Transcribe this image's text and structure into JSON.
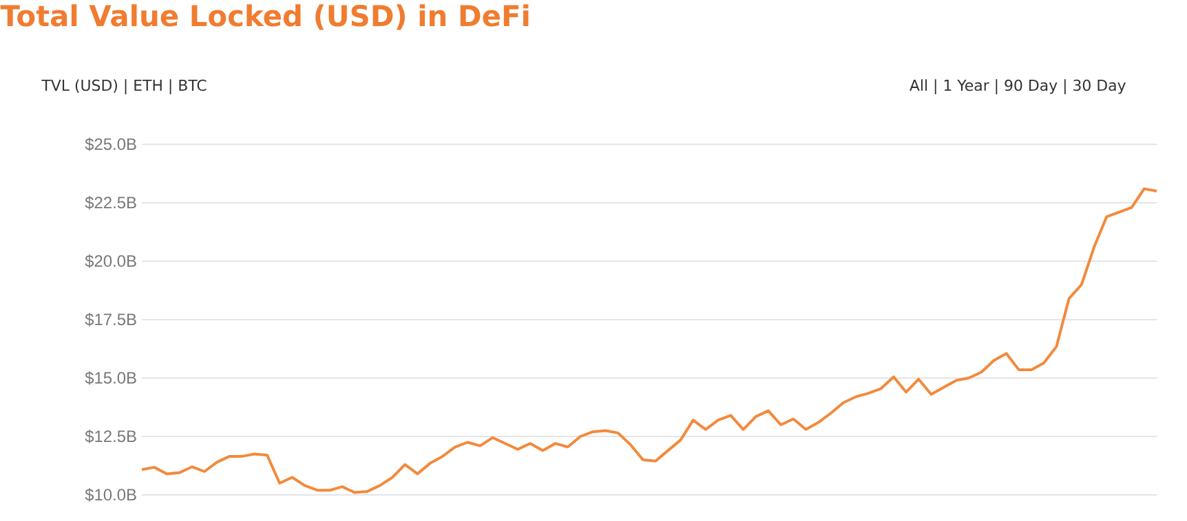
{
  "chart_data": {
    "type": "line",
    "title": "Total Value Locked (USD) in DeFi",
    "annotations": [
      "TVL (USD) | ETH | BTC",
      "All | 1 Year | 90 Day | 30 Day"
    ],
    "categories": [
      null,
      null,
      null,
      null,
      null,
      null,
      null,
      null,
      null,
      null,
      null,
      null,
      null,
      null,
      null,
      null,
      null,
      null,
      null,
      null,
      null,
      null,
      null,
      null,
      null,
      null,
      null,
      null,
      null,
      null,
      null,
      null,
      null,
      null,
      null,
      null,
      null,
      null,
      null,
      null,
      null,
      null,
      null,
      null,
      null,
      null,
      null,
      null,
      null,
      null,
      null,
      null,
      null,
      null,
      null,
      null,
      null,
      null,
      null,
      null,
      null,
      null,
      null,
      null,
      null,
      null,
      null,
      null,
      null,
      null,
      null,
      null,
      null,
      null,
      null,
      null,
      null,
      null,
      null,
      null,
      null,
      null
    ],
    "series": [
      {
        "color": "#f28a3c",
        "values": [
          11.08,
          11.18,
          10.9,
          10.95,
          11.2,
          11.0,
          11.4,
          11.65,
          11.65,
          11.75,
          11.7,
          10.5,
          10.75,
          10.4,
          10.2,
          10.2,
          10.35,
          10.1,
          10.15,
          10.4,
          10.75,
          11.3,
          10.9,
          11.35,
          11.65,
          12.05,
          12.25,
          12.1,
          12.45,
          12.2,
          11.95,
          12.2,
          11.9,
          12.2,
          12.05,
          12.5,
          12.7,
          12.75,
          12.65,
          12.15,
          11.5,
          11.45,
          11.9,
          12.35,
          13.2,
          12.8,
          13.2,
          13.4,
          12.8,
          13.35,
          13.6,
          13.0,
          13.25,
          12.8,
          13.1,
          13.5,
          13.95,
          14.2,
          14.35,
          14.55,
          15.05,
          14.4,
          14.95,
          14.3,
          14.6,
          14.9,
          15.0,
          15.25,
          15.75,
          16.05,
          15.35,
          15.35,
          15.65,
          16.35,
          18.4,
          19.0,
          20.6,
          21.9,
          22.1,
          22.3,
          23.1,
          23.0
        ]
      }
    ],
    "ylim": [
      10,
      25
    ],
    "yticks": [
      {
        "value": 10,
        "label": "$10.0B"
      },
      {
        "value": 12.5,
        "label": "$12.5B"
      },
      {
        "value": 15,
        "label": "$15.0B"
      },
      {
        "value": 17.5,
        "label": "$17.5B"
      },
      {
        "value": 20,
        "label": "$20.0B"
      },
      {
        "value": 22.5,
        "label": "$22.5B"
      },
      {
        "value": 25,
        "label": "$25.0B"
      }
    ],
    "grid": "y",
    "marker": "none",
    "line_style": "solid"
  }
}
